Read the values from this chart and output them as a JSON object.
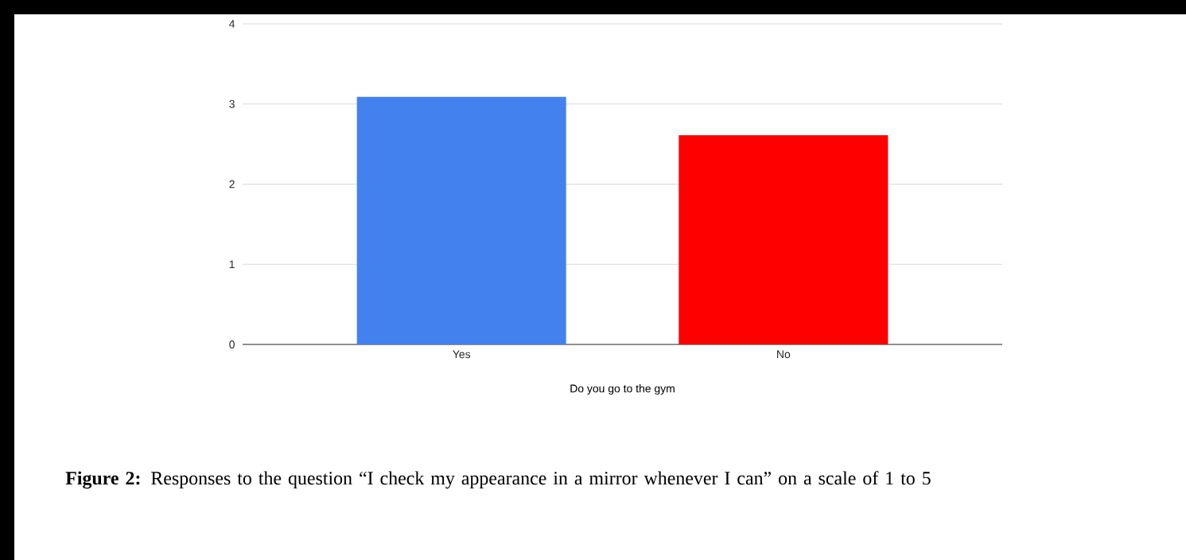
{
  "chart_data": {
    "type": "bar",
    "xlabel": "Do you go to the gym",
    "categories": [
      "Yes",
      "No"
    ],
    "values": [
      3.09,
      2.61
    ],
    "colors": [
      "#4381ee",
      "#ff0000"
    ],
    "ylim": [
      0,
      4
    ],
    "yticks": [
      0,
      1,
      2,
      3,
      4
    ],
    "grid": "y",
    "annotations": [
      "**Figure 2:** Responses to the question “I check my appearance in a mirror whenever I can” on a scale of 1 to 5"
    ]
  }
}
